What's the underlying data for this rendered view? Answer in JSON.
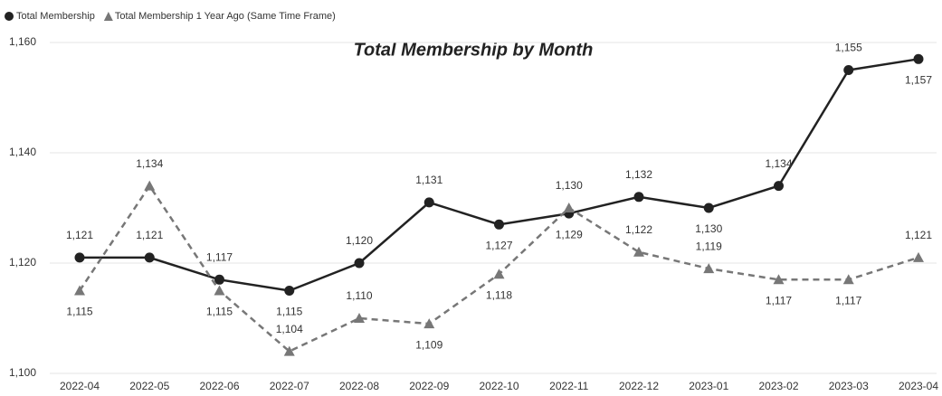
{
  "chart_data": {
    "type": "line",
    "title": "Total Membership by Month",
    "categories": [
      "2022-04",
      "2022-05",
      "2022-06",
      "2022-07",
      "2022-08",
      "2022-09",
      "2022-10",
      "2022-11",
      "2022-12",
      "2023-01",
      "2023-02",
      "2023-03",
      "2023-04"
    ],
    "series": [
      {
        "name": "Total Membership",
        "color": "#222222",
        "marker": "circle",
        "dash": false,
        "values": [
          1121,
          1121,
          1117,
          1115,
          1120,
          1131,
          1127,
          1129,
          1132,
          1130,
          1134,
          1155,
          1157
        ],
        "value_labels": [
          "1,121",
          "1,121",
          "1,117",
          "1,115",
          "1,120",
          "1,131",
          "1,127",
          "1,129",
          "1,132",
          "1,130",
          "1,134",
          "1,155",
          "1,157"
        ]
      },
      {
        "name": "Total Membership 1 Year Ago (Same Time Frame)",
        "color": "#777777",
        "marker": "triangle",
        "dash": true,
        "values": [
          1115,
          1134,
          1115,
          1104,
          1110,
          1109,
          1118,
          1130,
          1122,
          1119,
          1117,
          1117,
          1121
        ],
        "value_labels": [
          "1,115",
          "1,134",
          "1,115",
          "1,104",
          "1,110",
          "1,109",
          "1,118",
          "1,130",
          "1,122",
          "1,119",
          "1,117",
          "1,117",
          "1,121"
        ]
      }
    ],
    "ylim": [
      1100,
      1160
    ],
    "yticks": [
      {
        "value": 1100,
        "label": "1,100"
      },
      {
        "value": 1120,
        "label": "1,120"
      },
      {
        "value": 1140,
        "label": "1,140"
      },
      {
        "value": 1160,
        "label": "1,160"
      }
    ],
    "grid": true,
    "legend": "top-left"
  }
}
